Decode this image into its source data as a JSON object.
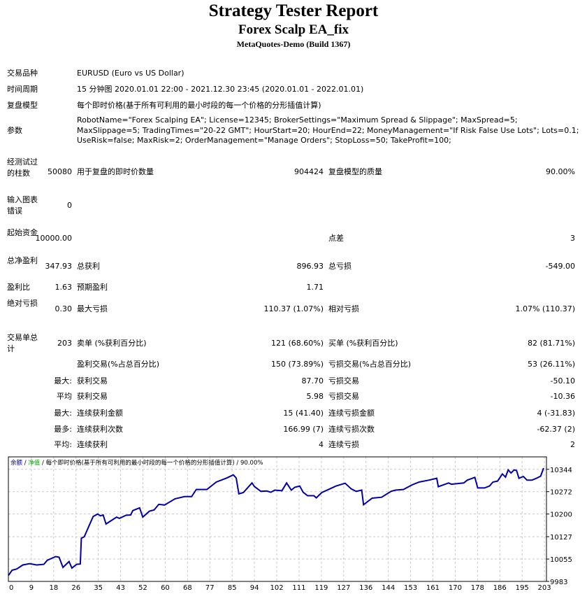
{
  "header": {
    "title": "Strategy Tester Report",
    "ea_name": "Forex Scalp EA_fix",
    "server": "MetaQuotes-Demo (Build 1367)"
  },
  "info": [
    {
      "label": "交易品种",
      "value": "EURUSD (Euro vs US Dollar)"
    },
    {
      "label": "时间周期",
      "value": "15 分钟图 2020.01.01 22:00 - 2021.12.30 23:45 (2020.01.01 - 2022.01.01)"
    },
    {
      "label": "复盘模型",
      "value": "每个即时价格(基于所有可利用的最小时段的每一个价格的分形插值计算)"
    },
    {
      "label": "参数",
      "value": "RobotName=\"Forex Scalping EA\"; License=12345; BrokerSettings=\"Maximum Spread & Slippage\"; MaxSpread=5; MaxSlippage=5; TradingTimes=\"20-22 GMT\"; HourStart=20; HourEnd=22; MoneyManagement=\"If Risk False Use Lots\"; Lots=0.1; UseRisk=false; MaxRisk=2; OrderManagement=\"Manage Orders\"; StopLoss=50; TakeProfit=100;"
    }
  ],
  "stats": [
    {
      "label": "经测试过的柱数",
      "value": "50080",
      "label2": "用于复盘的即时价数量",
      "value2": "904424",
      "label3": "复盘模型的质量",
      "value3": "90.00%"
    },
    {
      "label": "输入图表错误",
      "value": "0",
      "label2": "",
      "value2": "",
      "label3": "",
      "value3": ""
    },
    {
      "label": "起始资金",
      "value": "10000.00",
      "label2": "",
      "value2": "",
      "label3": "点差",
      "value3": "3"
    },
    {
      "label": "总净盈利",
      "value": "347.93",
      "label2": "总获利",
      "value2": "896.93",
      "label3": "总亏损",
      "value3": "-549.00"
    },
    {
      "label": "盈利比",
      "value": "1.63",
      "label2": "预期盈利",
      "value2": "1.71",
      "label3": "",
      "value3": ""
    },
    {
      "label": "绝对亏损",
      "value": "0.30",
      "label2": "最大亏损",
      "value2": "110.37 (1.07%)",
      "label3": "相对亏损",
      "value3": "1.07% (110.37)"
    },
    {
      "label": "交易单总计",
      "value": "203",
      "label2": "卖单 (%获利百分比)",
      "value2": "121 (68.60%)",
      "label3": "买单 (%获利百分比)",
      "value3": "82 (81.71%)"
    },
    {
      "label": "",
      "value": "",
      "label2": "盈利交易(%占总百分比)",
      "value2": "150 (73.89%)",
      "label3": "亏损交易(%占总百分比)",
      "value3": "53 (26.11%)"
    },
    {
      "label": "",
      "value": "最大:",
      "label2": "获利交易",
      "value2": "87.70",
      "label3": "亏损交易",
      "value3": "-50.10"
    },
    {
      "label": "",
      "value": "平均",
      "label2": "获利交易",
      "value2": "5.98",
      "label3": "亏损交易",
      "value3": "-10.36"
    },
    {
      "label": "",
      "value": "最大:",
      "label2": "连续获利金额",
      "value2": "15 (41.40)",
      "label3": "连续亏损金额",
      "value3": "4 (-31.83)"
    },
    {
      "label": "",
      "value": "最多:",
      "label2": "连续获利次数",
      "value2": "166.99 (7)",
      "label3": "连续亏损次数",
      "value3": "-62.37 (2)"
    },
    {
      "label": "",
      "value": "平均:",
      "label2": "连续获利",
      "value2": "4",
      "label3": "连续亏损",
      "value3": "2"
    }
  ],
  "chart_data": {
    "type": "line",
    "legend": {
      "balance": "余额",
      "sep1": " / ",
      "equity": "净值",
      "sep2": " / ",
      "model": "每个即时价格(基于所有可利用的最小时段的每一个价格的分形插值计算)",
      "sep3": " / ",
      "quality": "90.00%"
    },
    "colors": {
      "balance": "#0000aa",
      "equity": "#00aa00",
      "grid": "#c8c8c8"
    },
    "grid": true,
    "xlim": [
      0,
      205
    ],
    "ylim": [
      9983,
      10384
    ],
    "x_ticks": [
      "0",
      "9",
      "18",
      "26",
      "35",
      "43",
      "52",
      "60",
      "68",
      "77",
      "85",
      "94",
      "102",
      "111",
      "119",
      "127",
      "136",
      "144",
      "153",
      "161",
      "170",
      "178",
      "186",
      "195",
      "203"
    ],
    "y_ticks": [
      9983,
      10055,
      10127,
      10200,
      10272,
      10344
    ],
    "series": [
      {
        "x": [
          0,
          1.4,
          3.2,
          5.5,
          8.1,
          10.8,
          13.5,
          14.8,
          18,
          19.3,
          20.8,
          23.1,
          24.2,
          26,
          27.4,
          27.8,
          28.9,
          32.3,
          34,
          35.1,
          36.1,
          37.2,
          41.2,
          42.3,
          44.8,
          46.6,
          47.4,
          50,
          51.2,
          53.7,
          55.5,
          57.3,
          59.5,
          63.5,
          67.1,
          69.8,
          71.6,
          75.6,
          79.2,
          83.2,
          85.7,
          86.8,
          87.8,
          89.5,
          92.8,
          93.7,
          96.2,
          98.4,
          100,
          101.5,
          104.2,
          106,
          107.8,
          109.1,
          111,
          112.3,
          114,
          116.4,
          117.3,
          119.4,
          122.5,
          124.8,
          128.3,
          130.6,
          132.5,
          134.6,
          135.3,
          138.6,
          142.2,
          145.8,
          147.5,
          150.5,
          153.8,
          156.5,
          160.1,
          163.2,
          163.8,
          167.7,
          168.8,
          173.5,
          174.8,
          177.7,
          178.8,
          181.4,
          183.3,
          184.6,
          186.4,
          188.2,
          189.4,
          190.4,
          191.5,
          192.7,
          193.6,
          194.5,
          196.2,
          197.6,
          199.4,
          201.2,
          202.8,
          203.9
        ],
        "y": [
          10002,
          10019,
          10023,
          10036,
          10040,
          10036,
          10038,
          10051,
          10063,
          10061,
          10028,
          10047,
          10026,
          10038,
          10039,
          10122,
          10127,
          10192,
          10200,
          10194,
          10197,
          10168,
          10190,
          10186,
          10196,
          10197,
          10211,
          10220,
          10190,
          10209,
          10213,
          10231,
          10229,
          10249,
          10256,
          10256,
          10279,
          10279,
          10303,
          10316,
          10326,
          10316,
          10265,
          10269,
          10300,
          10289,
          10273,
          10274,
          10270,
          10277,
          10275,
          10300,
          10277,
          10286,
          10290,
          10270,
          10259,
          10259,
          10252,
          10269,
          10281,
          10290,
          10299,
          10281,
          10273,
          10277,
          10230,
          10251,
          10254,
          10273,
          10277,
          10279,
          10294,
          10303,
          10309,
          10315,
          10288,
          10300,
          10296,
          10300,
          10309,
          10318,
          10284,
          10284,
          10290,
          10303,
          10306,
          10329,
          10319,
          10342,
          10332,
          10342,
          10340,
          10315,
          10321,
          10309,
          10309,
          10315,
          10322,
          10348
        ]
      }
    ]
  }
}
